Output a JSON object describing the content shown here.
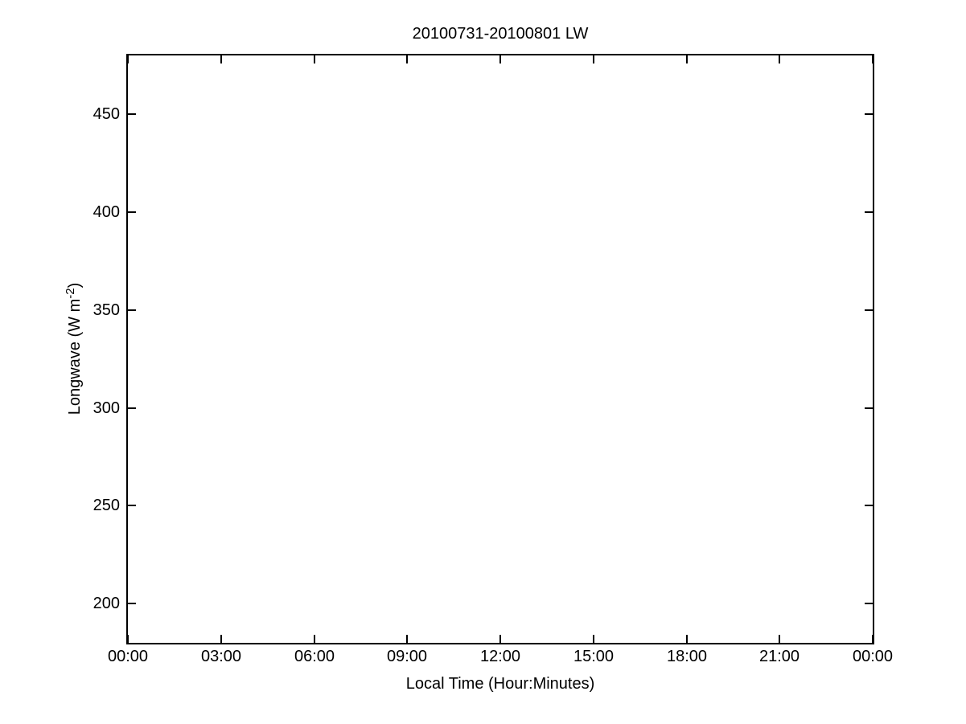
{
  "figure": {
    "background_color": "#ffffff",
    "axis_color": "#000000",
    "text_color": "#000000"
  },
  "chart_data": {
    "type": "line",
    "title": "20100731-20100801 LW",
    "xlabel": "Local Time (Hour:Minutes)",
    "ylabel": "Longwave (W m-2)",
    "ylabel_parts": [
      "Longwave (W m",
      "-2",
      ")"
    ],
    "x_tick_labels": [
      "00:00",
      "03:00",
      "06:00",
      "09:00",
      "12:00",
      "15:00",
      "18:00",
      "21:00",
      "00:00"
    ],
    "x_tick_hours": [
      0,
      3,
      6,
      9,
      12,
      15,
      18,
      21,
      24
    ],
    "xlim_hours": [
      0,
      24
    ],
    "y_ticks": [
      200,
      250,
      300,
      350,
      400,
      450
    ],
    "ylim": [
      180,
      480
    ],
    "grid": false,
    "legend_position": "none",
    "series": []
  }
}
